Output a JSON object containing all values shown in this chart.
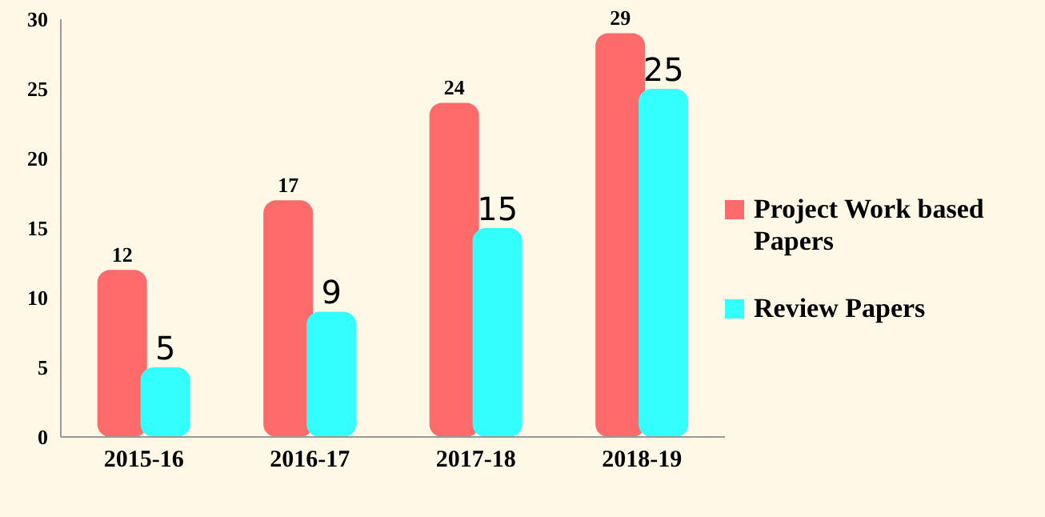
{
  "chart_data": {
    "type": "bar",
    "categories": [
      "2015-16",
      "2016-17",
      "2017-18",
      "2018-19"
    ],
    "series": [
      {
        "name": "Project Work based Papers",
        "color": "#ff6b6b",
        "values": [
          12,
          17,
          24,
          29
        ]
      },
      {
        "name": "Review Papers",
        "color": "#33ffff",
        "values": [
          5,
          9,
          15,
          25
        ]
      }
    ],
    "ylim": [
      0,
      30
    ],
    "yticks": [
      0,
      5,
      10,
      15,
      20,
      25,
      30
    ],
    "grid": false,
    "legend": "right",
    "data_labels": true
  }
}
